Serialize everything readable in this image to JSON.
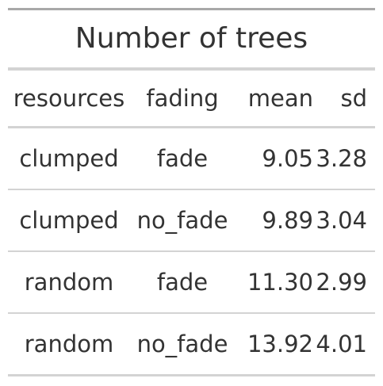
{
  "table": {
    "title": "Number of trees",
    "columns": [
      "resources",
      "fading",
      "mean",
      "sd"
    ],
    "rows": [
      [
        "clumped",
        "fade",
        "9.05",
        "3.28"
      ],
      [
        "clumped",
        "no_fade",
        "9.89",
        "3.04"
      ],
      [
        "random",
        "fade",
        "11.30",
        "2.99"
      ],
      [
        "random",
        "no_fade",
        "13.92",
        "4.01"
      ]
    ]
  },
  "colors": {
    "text": "#333333",
    "top_rule": "#a8a8a8",
    "rules": "#d3d3d3"
  }
}
